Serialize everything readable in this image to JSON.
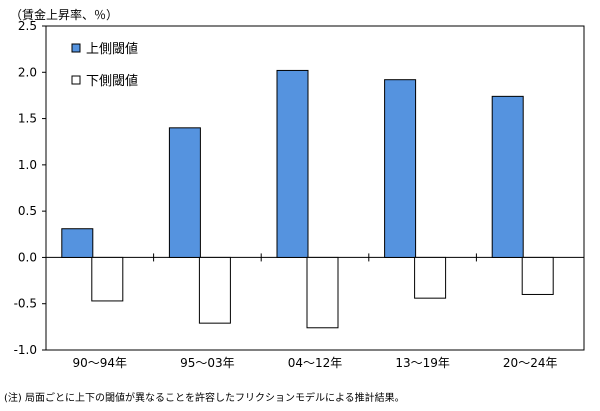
{
  "chart_data": {
    "type": "bar",
    "unit_label": "（賃金上昇率、％）",
    "categories": [
      "90～94年",
      "95～03年",
      "04～12年",
      "13～19年",
      "20～24年"
    ],
    "series": [
      {
        "name": "上側閾値",
        "color": "#5593df",
        "values": [
          0.31,
          1.4,
          2.02,
          1.92,
          1.74
        ]
      },
      {
        "name": "下側閾値",
        "color": "#ffffff",
        "values": [
          -0.47,
          -0.71,
          -0.76,
          -0.44,
          -0.4
        ]
      }
    ],
    "ylim": [
      -1.0,
      2.5
    ],
    "yticks": [
      2.5,
      2.0,
      1.5,
      1.0,
      0.5,
      0.0,
      -0.5,
      -1.0
    ],
    "ytick_labels": [
      "2.5",
      "2.0",
      "1.5",
      "1.0",
      "0.5",
      "0.0",
      "-0.5",
      "-1.0"
    ],
    "legend_position": "top-left",
    "grid": false,
    "note": "(注) 局面ごとに上下の閾値が異なることを許容したフリクションモデルによる推計結果。"
  }
}
